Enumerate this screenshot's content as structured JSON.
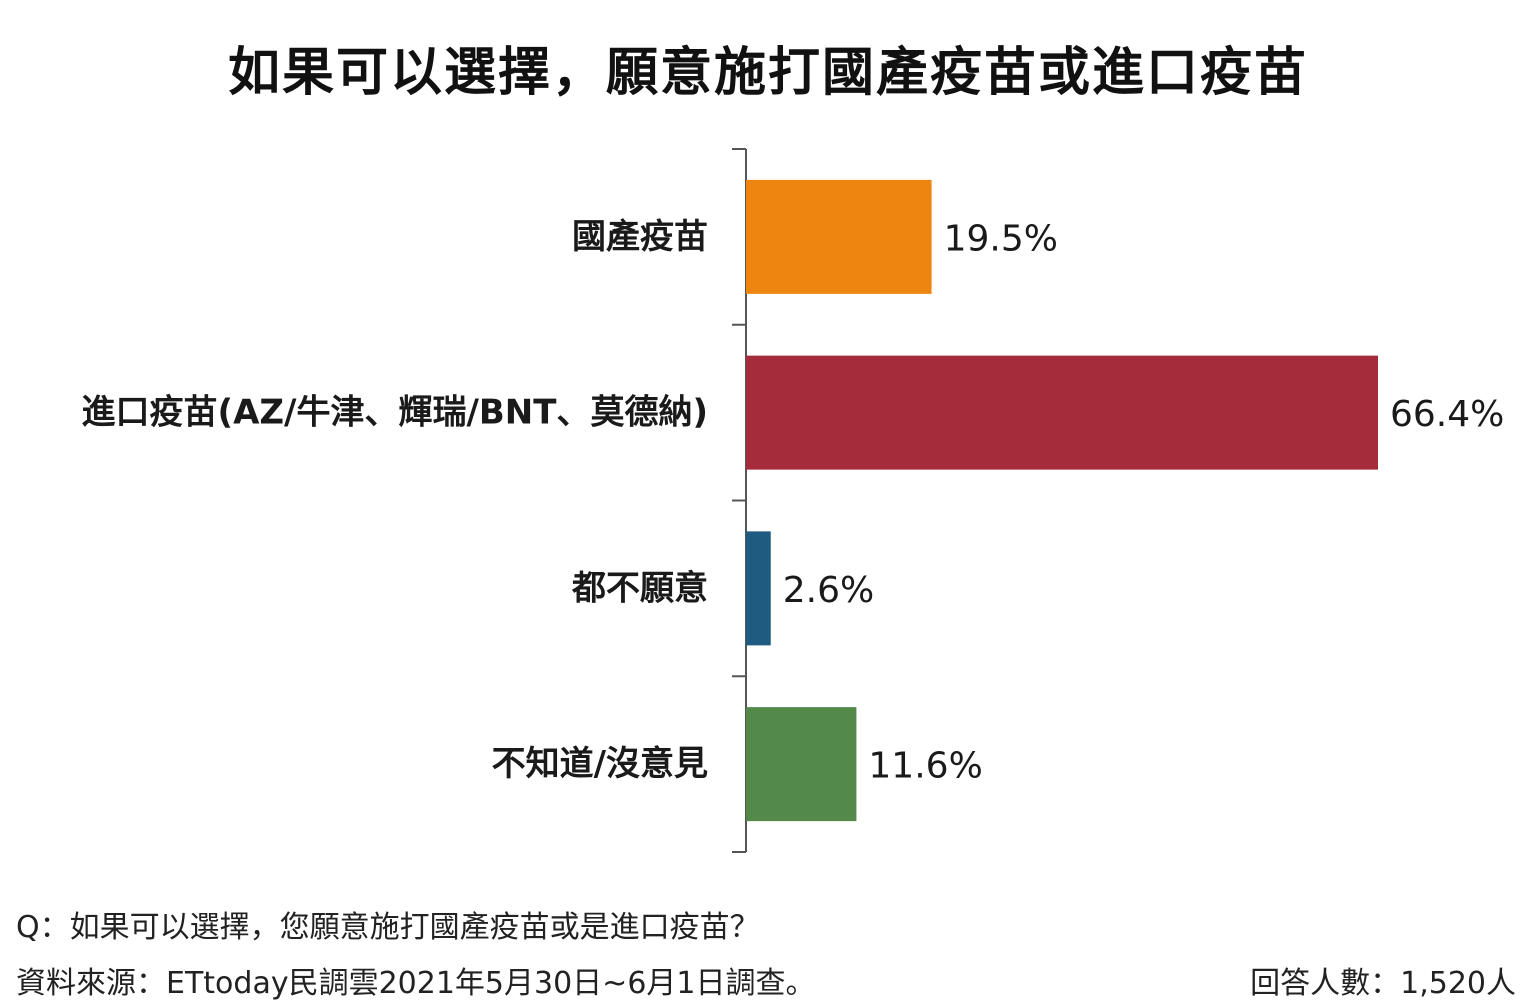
{
  "chart_data": {
    "type": "bar",
    "orientation": "horizontal",
    "title": "如果可以選擇，願意施打國產疫苗或進口疫苗",
    "categories": [
      "國產疫苗",
      "進口疫苗(AZ/牛津、輝瑞/BNT、莫德納)",
      "都不願意",
      "不知道/沒意見"
    ],
    "values": [
      19.5,
      66.4,
      2.6,
      11.6
    ],
    "value_labels": [
      "19.5%",
      "66.4%",
      "2.6%",
      "11.6%"
    ],
    "colors": [
      "#EE8511",
      "#A52D3B",
      "#1F5A80",
      "#538A4A"
    ],
    "xlim": [
      0,
      66.4
    ],
    "grid": false,
    "legend": "none"
  },
  "footer": {
    "question": "Q：如果可以選擇，您願意施打國產疫苗或是進口疫苗？",
    "source": "資料來源：ETtoday民調雲2021年5月30日~6月1日調查。",
    "respondents": "回答人數：1,520人"
  }
}
